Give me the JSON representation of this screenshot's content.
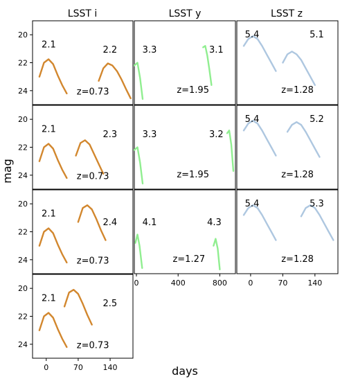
{
  "figure": {
    "ylabel": "mag",
    "xlabel": "days",
    "columns": [
      "LSST i",
      "LSST y",
      "LSST z"
    ]
  },
  "chart_data": [
    {
      "type": "line",
      "band": "LSST i",
      "panel": 1,
      "color": "#d2872e",
      "ylim": [
        25,
        19
      ],
      "xlim": [
        -30,
        190
      ],
      "yticks": [
        20,
        22,
        24
      ],
      "xticks": [
        0,
        70,
        140
      ],
      "annotations": {
        "left": "2.1",
        "right": "2.2",
        "z": "z=0.73"
      },
      "series": [
        {
          "x": [
            -15,
            -5,
            5,
            15,
            25,
            35,
            45
          ],
          "y": [
            23.0,
            22.0,
            21.75,
            22.1,
            22.9,
            23.6,
            24.2
          ]
        },
        {
          "x": [
            115,
            125,
            135,
            145,
            155,
            165,
            175,
            185
          ],
          "y": [
            23.3,
            22.4,
            22.05,
            22.2,
            22.6,
            23.2,
            23.9,
            24.55
          ]
        }
      ]
    },
    {
      "type": "line",
      "band": "LSST i",
      "panel": 2,
      "color": "#d2872e",
      "ylim": [
        25,
        19
      ],
      "xlim": [
        -30,
        190
      ],
      "yticks": [
        20,
        22,
        24
      ],
      "xticks": [
        0,
        70,
        140
      ],
      "annotations": {
        "left": "2.1",
        "right": "2.3",
        "z": "z=0.73"
      },
      "series": [
        {
          "x": [
            -15,
            -5,
            5,
            15,
            25,
            35,
            45
          ],
          "y": [
            23.0,
            22.0,
            21.75,
            22.1,
            22.9,
            23.6,
            24.2
          ]
        },
        {
          "x": [
            65,
            75,
            85,
            95,
            105,
            115,
            125
          ],
          "y": [
            22.6,
            21.7,
            21.5,
            21.8,
            22.5,
            23.2,
            23.9
          ]
        }
      ]
    },
    {
      "type": "line",
      "band": "LSST i",
      "panel": 3,
      "color": "#d2872e",
      "ylim": [
        25,
        19
      ],
      "xlim": [
        -30,
        190
      ],
      "yticks": [
        20,
        22,
        24
      ],
      "xticks": [
        0,
        70,
        140
      ],
      "annotations": {
        "left": "2.1",
        "right": "2.4",
        "z": "z=0.73"
      },
      "series": [
        {
          "x": [
            -15,
            -5,
            5,
            15,
            25,
            35,
            45
          ],
          "y": [
            23.0,
            22.0,
            21.75,
            22.1,
            22.9,
            23.6,
            24.2
          ]
        },
        {
          "x": [
            70,
            80,
            90,
            100,
            110,
            120,
            130
          ],
          "y": [
            21.3,
            20.3,
            20.1,
            20.4,
            21.1,
            21.9,
            22.6
          ]
        }
      ]
    },
    {
      "type": "line",
      "band": "LSST i",
      "panel": 4,
      "color": "#d2872e",
      "ylim": [
        25,
        19
      ],
      "xlim": [
        -30,
        190
      ],
      "yticks": [
        20,
        22,
        24
      ],
      "xticks": [
        0,
        70,
        140
      ],
      "annotations": {
        "left": "2.1",
        "right": "2.5",
        "z": "z=0.73"
      },
      "series": [
        {
          "x": [
            -15,
            -5,
            5,
            15,
            25,
            35,
            45
          ],
          "y": [
            23.0,
            22.0,
            21.75,
            22.1,
            22.9,
            23.6,
            24.2
          ]
        },
        {
          "x": [
            40,
            50,
            60,
            70,
            80,
            90,
            100
          ],
          "y": [
            21.3,
            20.3,
            20.1,
            20.4,
            21.1,
            21.9,
            22.6
          ]
        }
      ]
    },
    {
      "type": "line",
      "band": "LSST y",
      "panel": 1,
      "color": "#90ee90",
      "ylim": [
        25,
        19
      ],
      "xlim": [
        -20,
        950
      ],
      "xticks": [
        0,
        400,
        800
      ],
      "annotations": {
        "left": "3.3",
        "right": "3.1",
        "z": "z=1.95"
      },
      "series": [
        {
          "x": [
            -20,
            10,
            35,
            60
          ],
          "y": [
            22.2,
            22.0,
            23.1,
            24.6
          ]
        },
        {
          "x": [
            640,
            660,
            680,
            700,
            720
          ],
          "y": [
            20.9,
            20.8,
            21.5,
            22.5,
            23.6
          ]
        }
      ]
    },
    {
      "type": "line",
      "band": "LSST y",
      "panel": 2,
      "color": "#90ee90",
      "ylim": [
        25,
        19
      ],
      "xlim": [
        -20,
        950
      ],
      "xticks": [
        0,
        400,
        800
      ],
      "annotations": {
        "left": "3.3",
        "right": "3.2",
        "z": "z=1.95"
      },
      "series": [
        {
          "x": [
            -20,
            10,
            35,
            60
          ],
          "y": [
            22.2,
            22.0,
            23.1,
            24.6
          ]
        },
        {
          "x": [
            870,
            890,
            910,
            930
          ],
          "y": [
            21.0,
            20.8,
            21.8,
            23.7
          ]
        }
      ]
    },
    {
      "type": "line",
      "band": "LSST y",
      "panel": 3,
      "color": "#90ee90",
      "ylim": [
        25,
        19
      ],
      "xlim": [
        -20,
        950
      ],
      "xticks": [
        0,
        400,
        800
      ],
      "annotations": {
        "left": "4.1",
        "right": "4.3",
        "z": "z=1.27"
      },
      "series": [
        {
          "x": [
            -10,
            10,
            30,
            55
          ],
          "y": [
            22.8,
            22.2,
            23.0,
            24.6
          ]
        },
        {
          "x": [
            740,
            760,
            780,
            800
          ],
          "y": [
            23.0,
            22.5,
            23.2,
            24.7
          ]
        }
      ]
    },
    {
      "type": "line",
      "band": "LSST z",
      "panel": 1,
      "color": "#aec7e0",
      "ylim": [
        25,
        19
      ],
      "xlim": [
        -30,
        190
      ],
      "xticks": [
        0,
        70,
        140
      ],
      "annotations": {
        "left": "5.4",
        "right": "5.1",
        "z": "z=1.28"
      },
      "series": [
        {
          "x": [
            -15,
            -5,
            5,
            15,
            25,
            35,
            45,
            55
          ],
          "y": [
            20.8,
            20.3,
            20.1,
            20.3,
            20.8,
            21.4,
            22.0,
            22.6
          ]
        },
        {
          "x": [
            70,
            80,
            90,
            100,
            110,
            120,
            130,
            140
          ],
          "y": [
            22.0,
            21.4,
            21.2,
            21.4,
            21.8,
            22.4,
            23.0,
            23.6
          ]
        }
      ]
    },
    {
      "type": "line",
      "band": "LSST z",
      "panel": 2,
      "color": "#aec7e0",
      "ylim": [
        25,
        19
      ],
      "xlim": [
        -30,
        190
      ],
      "xticks": [
        0,
        70,
        140
      ],
      "annotations": {
        "left": "5.4",
        "right": "5.2",
        "z": "z=1.28"
      },
      "series": [
        {
          "x": [
            -15,
            -5,
            5,
            15,
            25,
            35,
            45,
            55
          ],
          "y": [
            20.8,
            20.3,
            20.1,
            20.3,
            20.8,
            21.4,
            22.0,
            22.6
          ]
        },
        {
          "x": [
            80,
            90,
            100,
            110,
            120,
            130,
            140,
            150
          ],
          "y": [
            20.9,
            20.4,
            20.2,
            20.4,
            20.9,
            21.5,
            22.1,
            22.7
          ]
        }
      ]
    },
    {
      "type": "line",
      "band": "LSST z",
      "panel": 3,
      "color": "#aec7e0",
      "ylim": [
        25,
        19
      ],
      "xlim": [
        -30,
        190
      ],
      "xticks": [
        0,
        70,
        140
      ],
      "annotations": {
        "left": "5.4",
        "right": "5.3",
        "z": "z=1.28"
      },
      "series": [
        {
          "x": [
            -15,
            -5,
            5,
            15,
            25,
            35,
            45,
            55
          ],
          "y": [
            20.8,
            20.3,
            20.1,
            20.3,
            20.8,
            21.4,
            22.0,
            22.6
          ]
        },
        {
          "x": [
            110,
            120,
            130,
            140,
            150,
            160,
            170,
            180
          ],
          "y": [
            20.9,
            20.3,
            20.1,
            20.3,
            20.8,
            21.4,
            22.0,
            22.6
          ]
        }
      ]
    }
  ]
}
